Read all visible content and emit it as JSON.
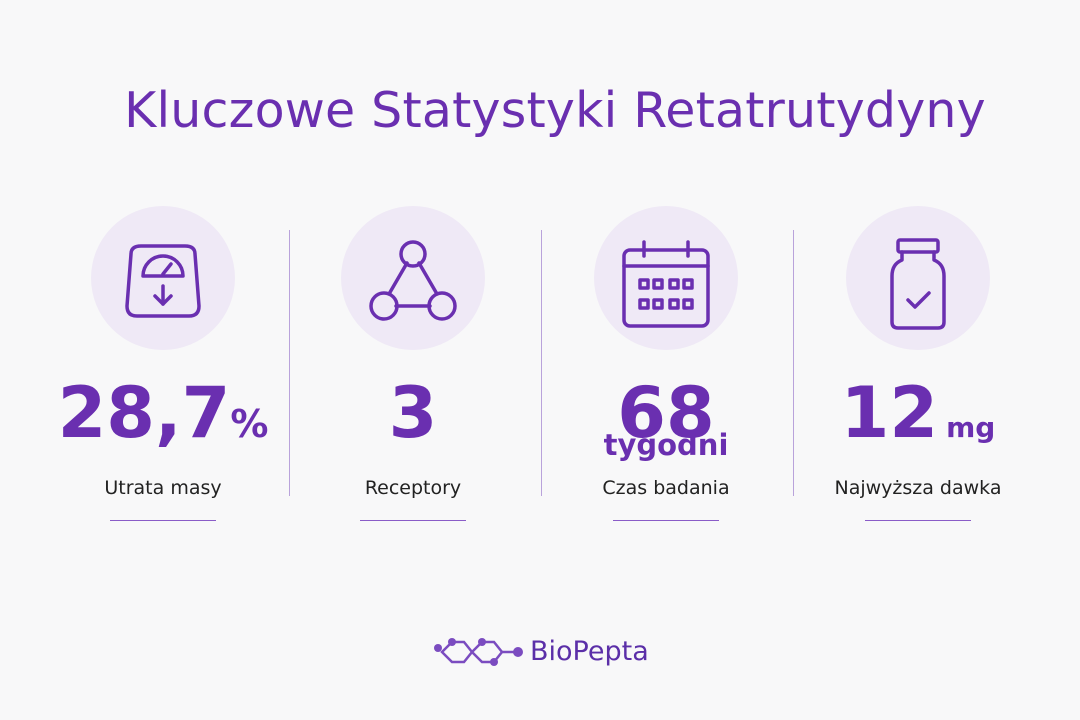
{
  "header": {
    "title": "Kluczowe Statystyki Retatrutydyny"
  },
  "stats": [
    {
      "value": "28,7",
      "unit": "%",
      "label": "Utrata masy"
    },
    {
      "value": "3",
      "label": "Receptory"
    },
    {
      "value": "68",
      "unit": "tygodni",
      "label": "Czas badania"
    },
    {
      "value": "12",
      "unit": "mg",
      "label": "Najwyższa dawka"
    }
  ],
  "footer": {
    "logo": "BioPepta"
  }
}
